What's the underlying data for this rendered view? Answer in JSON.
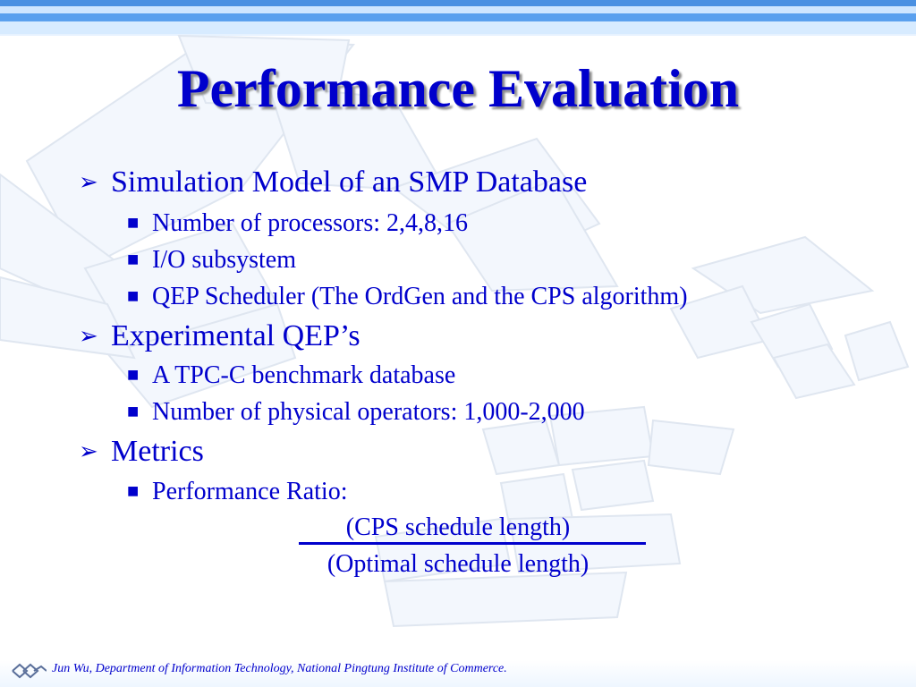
{
  "slide": {
    "title": "Performance Evaluation",
    "bullets": [
      {
        "label": "Simulation Model of an SMP Database",
        "items": [
          "Number of processors: 2,4,8,16",
          "I/O subsystem",
          "QEP Scheduler (The OrdGen and the CPS algorithm)"
        ]
      },
      {
        "label": "Experimental QEP’s",
        "items": [
          "A TPC-C benchmark database",
          "Number of physical operators: 1,000-2,000"
        ]
      },
      {
        "label": "Metrics",
        "items": [
          "Performance Ratio:"
        ]
      }
    ],
    "formula": {
      "numerator": "(CPS schedule length)",
      "denominator": "(Optimal schedule length)"
    },
    "footer": "Jun Wu, Department of Information Technology, National Pingtung Institute of Commerce."
  },
  "markers": {
    "level1": "➢",
    "level2": "■"
  },
  "colors": {
    "text": "#0000cc",
    "stripe": "#4a90e2",
    "tile": "#f2f6fc"
  }
}
